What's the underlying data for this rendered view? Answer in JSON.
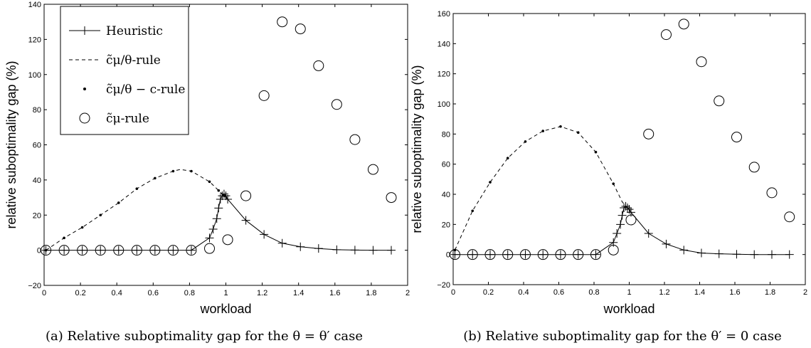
{
  "colors": {
    "ink": "#000000",
    "background": "#ffffff"
  },
  "chart_data": [
    {
      "type": "line",
      "caption": "(a) Relative suboptimality gap for the θ = θ′ case",
      "xlabel": "workload",
      "ylabel": "relative suboptimality gap (%)",
      "xlim": [
        0,
        2
      ],
      "ylim": [
        -20,
        140
      ],
      "xticks": [
        0,
        0.2,
        0.4,
        0.6,
        0.8,
        1,
        1.2,
        1.4,
        1.6,
        1.8,
        2
      ],
      "xtick_labels": [
        "0",
        "0.2",
        "0.4",
        "0.6",
        "0.8",
        "1",
        "1.2",
        "1.4",
        "1.6",
        "1.8",
        "2"
      ],
      "yticks": [
        -20,
        0,
        20,
        40,
        60,
        80,
        100,
        120,
        140
      ],
      "ytick_labels": [
        "−20",
        "0",
        "20",
        "40",
        "60",
        "80",
        "100",
        "120",
        "140"
      ],
      "grid": false,
      "legend_position": "top-left",
      "legend": [
        {
          "label": "Heuristic",
          "style": "solid-plus"
        },
        {
          "label": "c̃μ/θ-rule",
          "style": "dashed"
        },
        {
          "label": "c̃μ/θ − c-rule",
          "style": "dot"
        },
        {
          "label": "c̃μ-rule",
          "style": "circle"
        }
      ],
      "series": [
        {
          "name": "Heuristic",
          "marker": "plus",
          "line": "solid",
          "x": [
            0.01,
            0.11,
            0.21,
            0.31,
            0.41,
            0.51,
            0.61,
            0.71,
            0.81,
            0.91,
            0.93,
            0.95,
            0.96,
            0.97,
            0.98,
            0.99,
            1.0,
            1.01,
            1.11,
            1.21,
            1.31,
            1.41,
            1.51,
            1.61,
            1.71,
            1.81,
            1.91
          ],
          "y": [
            0,
            0,
            0,
            0,
            0,
            0,
            0,
            0,
            0,
            7,
            12,
            18,
            24,
            29,
            31,
            32,
            31,
            29,
            17,
            9,
            4,
            2,
            1,
            0.3,
            0.1,
            0,
            0
          ]
        },
        {
          "name": "c̃μ/θ-rule",
          "marker": "none",
          "line": "dashed",
          "x": [
            0.01,
            0.11,
            0.21,
            0.31,
            0.41,
            0.51,
            0.61,
            0.71,
            0.75,
            0.81,
            0.91,
            0.96,
            0.99,
            1.01
          ],
          "y": [
            0,
            7,
            13,
            20,
            27,
            35,
            41,
            45,
            46,
            45,
            39,
            34,
            31,
            29
          ]
        },
        {
          "name": "c̃μ/θ − c-rule",
          "marker": "dot",
          "line": "none",
          "x": [
            0.01,
            0.11,
            0.21,
            0.31,
            0.41,
            0.51,
            0.61,
            0.71,
            0.81,
            0.91,
            0.96,
            0.99
          ],
          "y": [
            0,
            7,
            13,
            20,
            27,
            35,
            41,
            45,
            45,
            39,
            34,
            31
          ]
        },
        {
          "name": "c̃μ-rule",
          "marker": "circle",
          "line": "none",
          "x": [
            0.01,
            0.11,
            0.21,
            0.31,
            0.41,
            0.51,
            0.61,
            0.71,
            0.81,
            0.91,
            1.01,
            1.11,
            1.21,
            1.31,
            1.41,
            1.51,
            1.61,
            1.71,
            1.81,
            1.91
          ],
          "y": [
            0,
            0,
            0,
            0,
            0,
            0,
            0,
            0,
            0,
            1,
            6,
            31,
            88,
            130,
            126,
            105,
            83,
            63,
            46,
            30
          ]
        }
      ]
    },
    {
      "type": "line",
      "caption": "(b) Relative suboptimality gap for the θ′ = 0 case",
      "xlabel": "workload",
      "ylabel": "relative suboptimality gap (%)",
      "xlim": [
        0,
        2
      ],
      "ylim": [
        -20,
        160
      ],
      "xticks": [
        0,
        0.2,
        0.4,
        0.6,
        0.8,
        1,
        1.2,
        1.4,
        1.6,
        1.8,
        2
      ],
      "xtick_labels": [
        "0",
        "0.2",
        "0.4",
        "0.6",
        "0.8",
        "1",
        "1.2",
        "1.4",
        "1.6",
        "1.8",
        "2"
      ],
      "yticks": [
        -20,
        0,
        20,
        40,
        60,
        80,
        100,
        120,
        140,
        160
      ],
      "ytick_labels": [
        "−20",
        "0",
        "20",
        "40",
        "60",
        "80",
        "100",
        "120",
        "140",
        "160"
      ],
      "grid": false,
      "series": [
        {
          "name": "Heuristic",
          "marker": "plus",
          "line": "solid",
          "x": [
            0.01,
            0.11,
            0.21,
            0.31,
            0.41,
            0.51,
            0.61,
            0.71,
            0.81,
            0.91,
            0.93,
            0.95,
            0.96,
            0.97,
            0.98,
            0.99,
            1.0,
            1.01,
            1.11,
            1.21,
            1.31,
            1.41,
            1.51,
            1.61,
            1.71,
            1.81,
            1.91
          ],
          "y": [
            0,
            0,
            0,
            0,
            0,
            0,
            0,
            0,
            0,
            8,
            14,
            20,
            26,
            31,
            32,
            31,
            30,
            28,
            14,
            7,
            3,
            1,
            0.5,
            0.2,
            0,
            0,
            0
          ]
        },
        {
          "name": "c̃μ/θ-rule",
          "marker": "none",
          "line": "dashed",
          "x": [
            0.01,
            0.11,
            0.21,
            0.31,
            0.41,
            0.51,
            0.61,
            0.71,
            0.81,
            0.91,
            0.96,
            0.99,
            1.01
          ],
          "y": [
            3,
            29,
            48,
            64,
            75,
            82,
            85,
            81,
            68,
            47,
            35,
            31,
            28
          ]
        },
        {
          "name": "c̃μ/θ − c-rule",
          "marker": "dot",
          "line": "none",
          "x": [
            0.01,
            0.11,
            0.21,
            0.31,
            0.41,
            0.51,
            0.61,
            0.71,
            0.81,
            0.91
          ],
          "y": [
            3,
            29,
            48,
            64,
            75,
            82,
            85,
            81,
            68,
            47
          ]
        },
        {
          "name": "c̃μ-rule",
          "marker": "circle",
          "line": "none",
          "x": [
            0.01,
            0.11,
            0.21,
            0.31,
            0.41,
            0.51,
            0.61,
            0.71,
            0.81,
            0.91,
            1.01,
            1.11,
            1.21,
            1.31,
            1.41,
            1.51,
            1.61,
            1.71,
            1.81,
            1.91
          ],
          "y": [
            0,
            0,
            0,
            0,
            0,
            0,
            0,
            0,
            0,
            3,
            23,
            80,
            146,
            153,
            128,
            102,
            78,
            58,
            41,
            25
          ]
        }
      ]
    }
  ]
}
